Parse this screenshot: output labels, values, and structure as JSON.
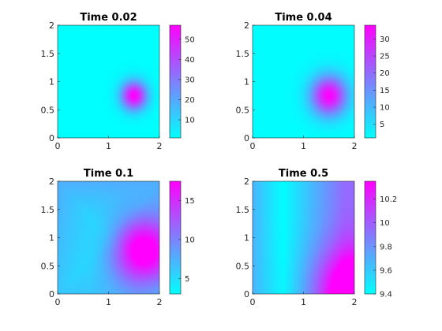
{
  "chart_data": [
    {
      "type": "heatmap",
      "title": "Time 0.02",
      "x_ticks": [
        0,
        1,
        2
      ],
      "y_ticks": [
        0,
        0.5,
        1,
        1.5,
        2
      ],
      "x_tick_labels": [
        "0",
        "1",
        "2"
      ],
      "y_tick_labels": [
        "0",
        "0.5",
        "1",
        "1.5",
        "2"
      ],
      "xlim": [
        0,
        2
      ],
      "ylim": [
        0,
        2
      ],
      "colorbar": {
        "min": 1,
        "max": 57,
        "ticks": [
          10,
          20,
          30,
          40,
          50
        ],
        "tick_labels": [
          "10",
          "20",
          "30",
          "40",
          "50"
        ]
      },
      "field": {
        "base": 1,
        "peak": 56,
        "center": [
          1.5,
          0.75
        ],
        "sigma": 0.18,
        "ramp": 0
      }
    },
    {
      "type": "heatmap",
      "title": "Time 0.04",
      "x_ticks": [
        0,
        1,
        2
      ],
      "y_ticks": [
        0,
        0.5,
        1,
        1.5,
        2
      ],
      "x_tick_labels": [
        "0",
        "1",
        "2"
      ],
      "y_tick_labels": [
        "0",
        "0.5",
        "1",
        "1.5",
        "2"
      ],
      "xlim": [
        0,
        2
      ],
      "ylim": [
        0,
        2
      ],
      "colorbar": {
        "min": 1,
        "max": 34,
        "ticks": [
          5,
          10,
          15,
          20,
          25,
          30
        ],
        "tick_labels": [
          "5",
          "10",
          "15",
          "20",
          "25",
          "30"
        ]
      },
      "field": {
        "base": 1.2,
        "peak": 32.5,
        "center": [
          1.5,
          0.75
        ],
        "sigma": 0.25,
        "ramp": 0
      }
    },
    {
      "type": "heatmap",
      "title": "Time 0.1",
      "x_ticks": [
        0,
        1,
        2
      ],
      "y_ticks": [
        0,
        0.5,
        1,
        1.5,
        2
      ],
      "x_tick_labels": [
        "0",
        "1",
        "2"
      ],
      "y_tick_labels": [
        "0",
        "0.5",
        "1",
        "1.5",
        "2"
      ],
      "xlim": [
        0,
        2
      ],
      "ylim": [
        0,
        2
      ],
      "colorbar": {
        "min": 3,
        "max": 17.5,
        "ticks": [
          5,
          10,
          15
        ],
        "tick_labels": [
          "5",
          "10",
          "15"
        ]
      },
      "field": {
        "base": 3.5,
        "peak": 13.5,
        "center": [
          1.65,
          0.75
        ],
        "sigma": 0.42,
        "ramp": 0,
        "edge_boost": 4.5
      }
    },
    {
      "type": "heatmap",
      "title": "Time 0.5",
      "x_ticks": [
        0,
        1,
        2
      ],
      "y_ticks": [
        0,
        0.5,
        1,
        1.5,
        2
      ],
      "x_tick_labels": [
        "0",
        "1",
        "2"
      ],
      "y_tick_labels": [
        "0",
        "0.5",
        "1",
        "1.5",
        "2"
      ],
      "xlim": [
        0,
        2
      ],
      "ylim": [
        0,
        2
      ],
      "colorbar": {
        "min": 9.4,
        "max": 10.35,
        "ticks": [
          9.4,
          9.6,
          9.8,
          10,
          10.2
        ],
        "tick_labels": [
          "9.4",
          "9.6",
          "9.8",
          "10",
          "10.2"
        ]
      },
      "field": {
        "base": 9.4,
        "peak": 0.75,
        "center": [
          2.0,
          0.0
        ],
        "sigma": 0.55,
        "ramp": 0,
        "edge_boost": 0.55,
        "valley_x": 0.6
      }
    }
  ],
  "colormap": {
    "low": "#00ffff",
    "high": "#ff00ff"
  }
}
